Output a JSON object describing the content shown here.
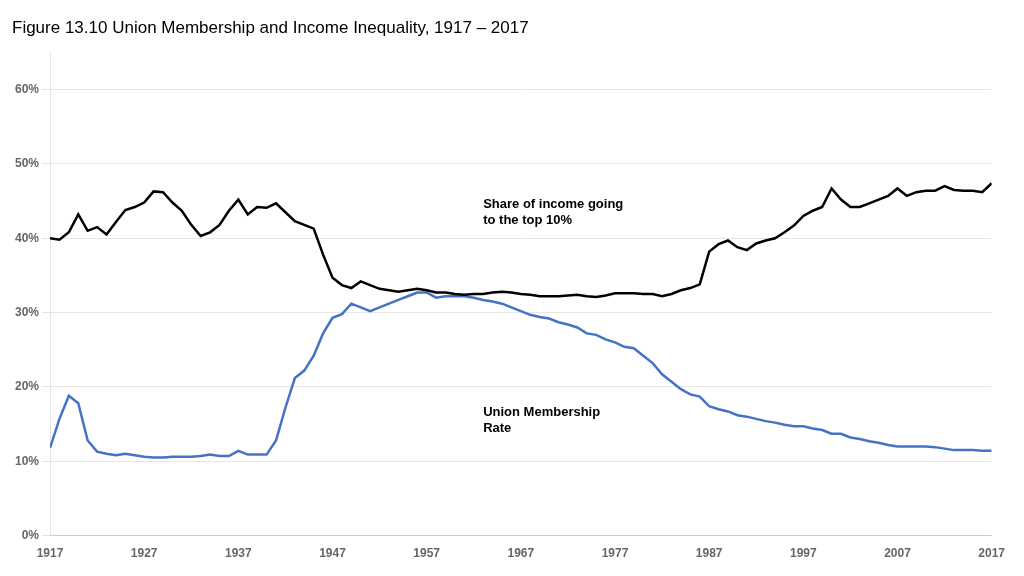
{
  "chart_data": {
    "type": "line",
    "title": "Figure 13.10 Union Membership and Income Inequality, 1917 – 2017",
    "x": [
      1917,
      1918,
      1919,
      1920,
      1921,
      1922,
      1923,
      1924,
      1925,
      1926,
      1927,
      1928,
      1929,
      1930,
      1931,
      1932,
      1933,
      1934,
      1935,
      1936,
      1937,
      1938,
      1939,
      1940,
      1941,
      1942,
      1943,
      1944,
      1945,
      1946,
      1947,
      1948,
      1949,
      1950,
      1951,
      1952,
      1953,
      1954,
      1955,
      1956,
      1957,
      1958,
      1959,
      1960,
      1961,
      1962,
      1963,
      1964,
      1965,
      1966,
      1967,
      1968,
      1969,
      1970,
      1971,
      1972,
      1973,
      1974,
      1975,
      1976,
      1977,
      1978,
      1979,
      1980,
      1981,
      1982,
      1983,
      1984,
      1985,
      1986,
      1987,
      1988,
      1989,
      1990,
      1991,
      1992,
      1993,
      1994,
      1995,
      1996,
      1997,
      1998,
      1999,
      2000,
      2001,
      2002,
      2003,
      2004,
      2005,
      2006,
      2007,
      2008,
      2009,
      2010,
      2011,
      2012,
      2013,
      2014,
      2015,
      2016,
      2017
    ],
    "series": [
      {
        "color": "#000000",
        "values": [
          0.4,
          0.398,
          0.408,
          0.432,
          0.41,
          0.415,
          0.405,
          0.422,
          0.438,
          0.442,
          0.448,
          0.463,
          0.462,
          0.448,
          0.437,
          0.418,
          0.403,
          0.408,
          0.418,
          0.437,
          0.452,
          0.432,
          0.442,
          0.441,
          0.447,
          0.435,
          0.423,
          0.418,
          0.413,
          0.378,
          0.347,
          0.337,
          0.333,
          0.342,
          0.337,
          0.332,
          0.33,
          0.328,
          0.33,
          0.332,
          0.33,
          0.327,
          0.327,
          0.325,
          0.324,
          0.325,
          0.325,
          0.327,
          0.328,
          0.327,
          0.325,
          0.324,
          0.322,
          0.322,
          0.322,
          0.323,
          0.324,
          0.322,
          0.321,
          0.323,
          0.326,
          0.326,
          0.326,
          0.325,
          0.325,
          0.322,
          0.325,
          0.33,
          0.333,
          0.338,
          0.382,
          0.392,
          0.397,
          0.388,
          0.384,
          0.393,
          0.397,
          0.4,
          0.408,
          0.417,
          0.43,
          0.437,
          0.442,
          0.467,
          0.452,
          0.442,
          0.442,
          0.447,
          0.452,
          0.457,
          0.467,
          0.457,
          0.462,
          0.464,
          0.464,
          0.47,
          0.465,
          0.464,
          0.464,
          0.462,
          0.474
        ]
      },
      {
        "color": "#4472C4",
        "values": [
          0.118,
          0.157,
          0.188,
          0.178,
          0.128,
          0.113,
          0.11,
          0.108,
          0.11,
          0.108,
          0.106,
          0.105,
          0.105,
          0.106,
          0.106,
          0.106,
          0.107,
          0.109,
          0.107,
          0.107,
          0.114,
          0.109,
          0.109,
          0.109,
          0.128,
          0.172,
          0.212,
          0.222,
          0.242,
          0.272,
          0.293,
          0.298,
          0.312,
          0.307,
          0.302,
          0.307,
          0.312,
          0.317,
          0.322,
          0.327,
          0.327,
          0.32,
          0.322,
          0.322,
          0.322,
          0.32,
          0.317,
          0.315,
          0.312,
          0.307,
          0.302,
          0.297,
          0.294,
          0.292,
          0.287,
          0.284,
          0.28,
          0.272,
          0.27,
          0.264,
          0.26,
          0.254,
          0.252,
          0.242,
          0.232,
          0.217,
          0.207,
          0.197,
          0.19,
          0.187,
          0.174,
          0.17,
          0.167,
          0.162,
          0.16,
          0.157,
          0.154,
          0.152,
          0.149,
          0.147,
          0.147,
          0.144,
          0.142,
          0.137,
          0.137,
          0.132,
          0.13,
          0.127,
          0.125,
          0.122,
          0.12,
          0.12,
          0.12,
          0.12,
          0.119,
          0.117,
          0.115,
          0.115,
          0.115,
          0.114,
          0.114
        ]
      }
    ],
    "xlim": [
      1917,
      2017
    ],
    "xticks": [
      1917,
      1927,
      1937,
      1947,
      1957,
      1967,
      1977,
      1987,
      1997,
      2007,
      2017
    ],
    "ylim": [
      0.0,
      0.65
    ],
    "yticks": [
      {
        "value": 0.0,
        "label": "0%"
      },
      {
        "value": 0.1,
        "label": "10%"
      },
      {
        "value": 0.2,
        "label": "20%"
      },
      {
        "value": 0.3,
        "label": "30%"
      },
      {
        "value": 0.4,
        "label": "40%"
      },
      {
        "value": 0.5,
        "label": "50%"
      },
      {
        "value": 0.6,
        "label": "60%"
      }
    ],
    "grid": "y",
    "annotations": [
      {
        "text": "Share of income going\nto the top 10%",
        "x": 1963,
        "y": 0.435
      },
      {
        "text": "Union Membership\nRate",
        "x": 1963,
        "y": 0.155
      }
    ]
  }
}
